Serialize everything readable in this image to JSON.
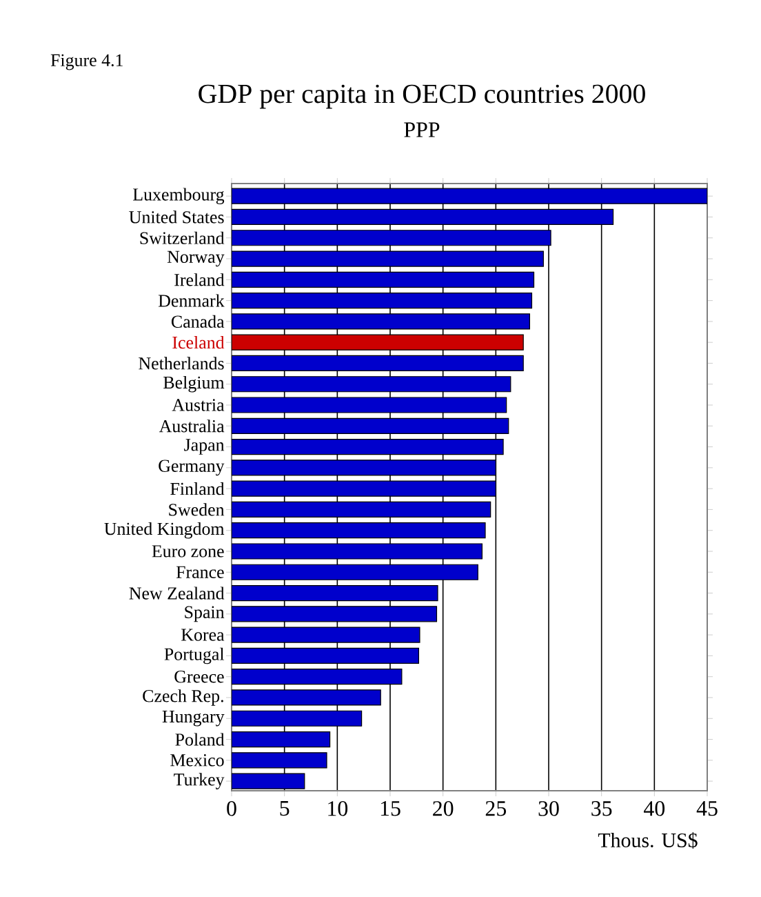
{
  "chart_data": {
    "type": "bar",
    "orientation": "horizontal",
    "title": "GDP per capita in OECD countries 2000",
    "subtitle": "PPP",
    "xlabel": "Thous. US$",
    "annotations": [
      "Figure 4.1"
    ],
    "categories": [
      "Luxembourg",
      "United States",
      "Switzerland",
      "Norway",
      "Ireland",
      "Denmark",
      "Canada",
      "Iceland",
      "Netherlands",
      "Belgium",
      "Austria",
      "Australia",
      "Japan",
      "Germany",
      "Finland",
      "Sweden",
      "United Kingdom",
      "Euro zone",
      "France",
      "New Zealand",
      "Spain",
      "Korea",
      "Portugal",
      "Greece",
      "Czech Rep.",
      "Hungary",
      "Poland",
      "Mexico",
      "Turkey"
    ],
    "values": [
      45.0,
      36.1,
      30.2,
      29.5,
      28.6,
      28.4,
      28.2,
      27.6,
      27.6,
      26.4,
      26.0,
      26.2,
      25.7,
      25.0,
      25.0,
      24.5,
      24.0,
      23.7,
      23.3,
      19.5,
      19.4,
      17.8,
      17.7,
      16.1,
      14.1,
      12.3,
      9.3,
      9.0,
      6.9
    ],
    "colors": [
      "#0000cc",
      "#0000cc",
      "#0000cc",
      "#0000cc",
      "#0000cc",
      "#0000cc",
      "#0000cc",
      "#cc0000",
      "#0000cc",
      "#0000cc",
      "#0000cc",
      "#0000cc",
      "#0000cc",
      "#0000cc",
      "#0000cc",
      "#0000cc",
      "#0000cc",
      "#0000cc",
      "#0000cc",
      "#0000cc",
      "#0000cc",
      "#0000cc",
      "#0000cc",
      "#0000cc",
      "#0000cc",
      "#0000cc",
      "#0000cc",
      "#0000cc",
      "#0000cc"
    ],
    "xlim": [
      0,
      45
    ],
    "xticks": [
      0,
      5,
      10,
      15,
      20,
      25,
      30,
      35,
      40,
      45
    ],
    "grid": "x"
  }
}
